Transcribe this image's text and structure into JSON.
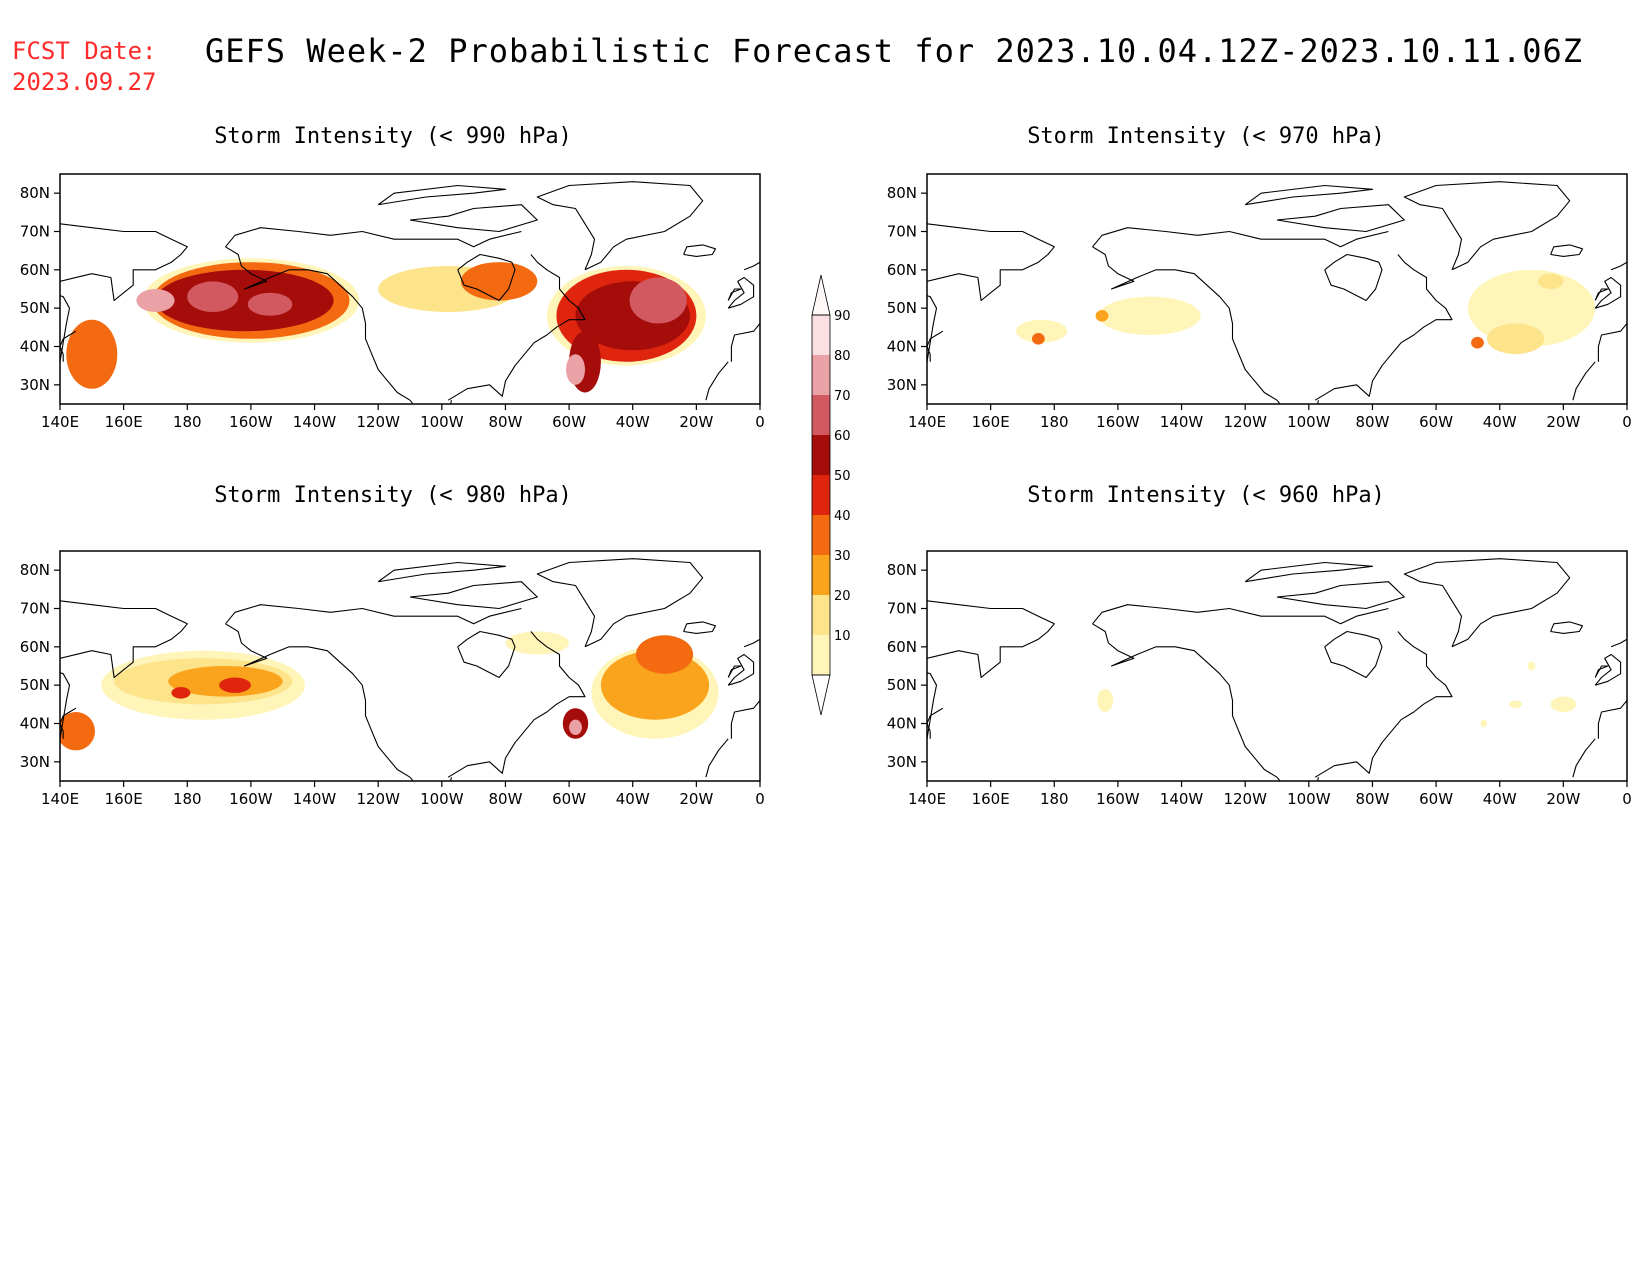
{
  "header": {
    "fcst_label": "FCST Date:",
    "fcst_date": "2023.09.27",
    "title": "GEFS Week-2 Probabilistic Forecast for 2023.10.04.12Z-2023.10.11.06Z"
  },
  "axes": {
    "lon_labels": [
      "140E",
      "160E",
      "180",
      "160W",
      "140W",
      "120W",
      "100W",
      "80W",
      "60W",
      "40W",
      "20W",
      "0"
    ],
    "lat_labels": [
      "30N",
      "40N",
      "50N",
      "60N",
      "70N",
      "80N"
    ],
    "lon_range": [
      140,
      360
    ],
    "lat_range": [
      25,
      85
    ]
  },
  "colorbar": {
    "labels": [
      "10",
      "20",
      "30",
      "40",
      "50",
      "60",
      "70",
      "80",
      "90"
    ],
    "colors": [
      "#fff5b8",
      "#fde38a",
      "#f9a41c",
      "#f36a10",
      "#e0250e",
      "#a50d0b",
      "#d25960",
      "#eba2a7",
      "#fbdfe2"
    ]
  },
  "panels": [
    {
      "id": "p990",
      "title": "Storm Intensity (< 990 hPa)",
      "blobs": [
        {
          "lon": 200,
          "lat": 52,
          "rx": 34,
          "ry": 11,
          "level": 0
        },
        {
          "lon": 200,
          "lat": 52,
          "rx": 31,
          "ry": 10,
          "level": 3
        },
        {
          "lon": 198,
          "lat": 52,
          "rx": 28,
          "ry": 8,
          "level": 5
        },
        {
          "lon": 188,
          "lat": 53,
          "rx": 8,
          "ry": 4,
          "level": 6
        },
        {
          "lon": 206,
          "lat": 51,
          "rx": 7,
          "ry": 3,
          "level": 6
        },
        {
          "lon": 170,
          "lat": 52,
          "rx": 6,
          "ry": 3,
          "level": 7
        },
        {
          "lon": 150,
          "lat": 38,
          "rx": 8,
          "ry": 9,
          "level": 3
        },
        {
          "lon": 262,
          "lat": 55,
          "rx": 22,
          "ry": 6,
          "level": 1
        },
        {
          "lon": 278,
          "lat": 57,
          "rx": 12,
          "ry": 5,
          "level": 3
        },
        {
          "lon": 318,
          "lat": 48,
          "rx": 25,
          "ry": 13,
          "level": 0
        },
        {
          "lon": 318,
          "lat": 48,
          "rx": 22,
          "ry": 12,
          "level": 4
        },
        {
          "lon": 320,
          "lat": 48,
          "rx": 18,
          "ry": 9,
          "level": 5
        },
        {
          "lon": 328,
          "lat": 52,
          "rx": 9,
          "ry": 6,
          "level": 6
        },
        {
          "lon": 305,
          "lat": 36,
          "rx": 5,
          "ry": 8,
          "level": 5
        },
        {
          "lon": 302,
          "lat": 34,
          "rx": 3,
          "ry": 4,
          "level": 7
        }
      ]
    },
    {
      "id": "p970",
      "title": "Storm Intensity (< 970 hPa)",
      "blobs": [
        {
          "lon": 210,
          "lat": 48,
          "rx": 16,
          "ry": 5,
          "level": 0
        },
        {
          "lon": 176,
          "lat": 44,
          "rx": 8,
          "ry": 3,
          "level": 0
        },
        {
          "lon": 195,
          "lat": 48,
          "rx": 2,
          "ry": 1.5,
          "level": 2
        },
        {
          "lon": 175,
          "lat": 42,
          "rx": 2,
          "ry": 1.5,
          "level": 3
        },
        {
          "lon": 330,
          "lat": 50,
          "rx": 20,
          "ry": 10,
          "level": 0
        },
        {
          "lon": 325,
          "lat": 42,
          "rx": 9,
          "ry": 4,
          "level": 1
        },
        {
          "lon": 313,
          "lat": 41,
          "rx": 2,
          "ry": 1.5,
          "level": 3
        },
        {
          "lon": 336,
          "lat": 57,
          "rx": 4,
          "ry": 2,
          "level": 1
        }
      ]
    },
    {
      "id": "p980",
      "title": "Storm Intensity (< 980 hPa)",
      "blobs": [
        {
          "lon": 185,
          "lat": 50,
          "rx": 32,
          "ry": 9,
          "level": 0
        },
        {
          "lon": 185,
          "lat": 51,
          "rx": 28,
          "ry": 6,
          "level": 1
        },
        {
          "lon": 192,
          "lat": 51,
          "rx": 18,
          "ry": 4,
          "level": 2
        },
        {
          "lon": 195,
          "lat": 50,
          "rx": 5,
          "ry": 2,
          "level": 4
        },
        {
          "lon": 178,
          "lat": 48,
          "rx": 3,
          "ry": 1.5,
          "level": 4
        },
        {
          "lon": 145,
          "lat": 38,
          "rx": 6,
          "ry": 5,
          "level": 3
        },
        {
          "lon": 327,
          "lat": 48,
          "rx": 20,
          "ry": 12,
          "level": 0
        },
        {
          "lon": 327,
          "lat": 50,
          "rx": 17,
          "ry": 9,
          "level": 2
        },
        {
          "lon": 330,
          "lat": 58,
          "rx": 9,
          "ry": 5,
          "level": 3
        },
        {
          "lon": 302,
          "lat": 40,
          "rx": 4,
          "ry": 4,
          "level": 5
        },
        {
          "lon": 302,
          "lat": 39,
          "rx": 2,
          "ry": 2,
          "level": 7
        },
        {
          "lon": 290,
          "lat": 61,
          "rx": 10,
          "ry": 3,
          "level": 0
        }
      ]
    },
    {
      "id": "p960",
      "title": "Storm Intensity (< 960 hPa)",
      "blobs": [
        {
          "lon": 196,
          "lat": 46,
          "rx": 2.5,
          "ry": 3,
          "level": 0
        },
        {
          "lon": 340,
          "lat": 45,
          "rx": 4,
          "ry": 2,
          "level": 0
        },
        {
          "lon": 325,
          "lat": 45,
          "rx": 2,
          "ry": 1,
          "level": 0
        },
        {
          "lon": 330,
          "lat": 55,
          "rx": 1.2,
          "ry": 1.2,
          "level": 0
        },
        {
          "lon": 315,
          "lat": 40,
          "rx": 1,
          "ry": 1,
          "level": 0
        }
      ]
    }
  ]
}
